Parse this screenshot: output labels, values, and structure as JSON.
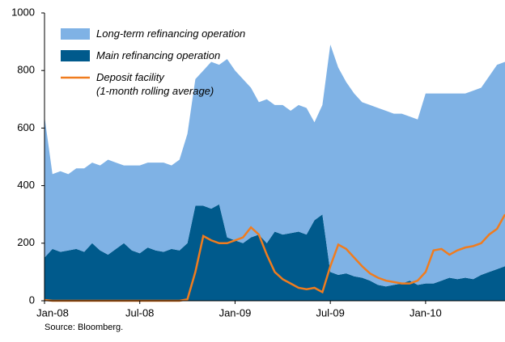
{
  "chart_data": {
    "type": "stacked_area_line",
    "source": "Source: Bloomberg.",
    "categories": [
      "Jan-08",
      null,
      null,
      null,
      null,
      null,
      null,
      null,
      null,
      null,
      null,
      null,
      "Jul-08",
      null,
      null,
      null,
      null,
      null,
      null,
      null,
      null,
      null,
      null,
      null,
      "Jan-09",
      null,
      null,
      null,
      null,
      null,
      null,
      null,
      null,
      null,
      null,
      null,
      "Jul-09",
      null,
      null,
      null,
      null,
      null,
      null,
      null,
      null,
      null,
      null,
      null,
      "Jan-10",
      null,
      null,
      null,
      null,
      null,
      null,
      null,
      null,
      null,
      null
    ],
    "series": [
      {
        "name": "Main refinancing operation",
        "color": "#005a8c",
        "kind": "area",
        "values": [
          150,
          180,
          170,
          175,
          180,
          170,
          200,
          175,
          160,
          180,
          200,
          175,
          165,
          185,
          175,
          170,
          180,
          175,
          200,
          330,
          330,
          320,
          335,
          220,
          210,
          200,
          220,
          230,
          200,
          240,
          230,
          235,
          240,
          230,
          280,
          300,
          100,
          90,
          95,
          85,
          80,
          70,
          55,
          50,
          55,
          60,
          70,
          55,
          60,
          60,
          70,
          80,
          75,
          80,
          75,
          90,
          100,
          110,
          120
        ]
      },
      {
        "name": "Long-term refinancing operation",
        "color": "#7fb2e5",
        "kind": "area",
        "values": [
          490,
          260,
          280,
          265,
          280,
          290,
          280,
          295,
          330,
          300,
          270,
          295,
          305,
          295,
          305,
          310,
          290,
          315,
          380,
          440,
          470,
          510,
          485,
          620,
          590,
          570,
          520,
          460,
          500,
          440,
          450,
          425,
          440,
          440,
          340,
          380,
          790,
          720,
          665,
          635,
          610,
          610,
          615,
          610,
          595,
          590,
          570,
          575,
          660,
          660,
          650,
          640,
          645,
          640,
          655,
          650,
          680,
          710,
          710
        ]
      },
      {
        "name": "Deposit facility\n(1-month rolling average)",
        "color": "#f07c1e",
        "kind": "line",
        "values": [
          3,
          0,
          0,
          0,
          0,
          0,
          0,
          0,
          0,
          0,
          0,
          0,
          0,
          0,
          0,
          0,
          0,
          0,
          5,
          100,
          225,
          210,
          200,
          200,
          210,
          220,
          255,
          230,
          160,
          100,
          75,
          60,
          45,
          40,
          45,
          30,
          120,
          195,
          180,
          150,
          120,
          95,
          80,
          70,
          65,
          60,
          60,
          70,
          100,
          175,
          180,
          160,
          175,
          185,
          190,
          200,
          230,
          250,
          300
        ]
      }
    ],
    "ylim": [
      0,
      1000
    ],
    "yticks": [
      0,
      200,
      400,
      600,
      800,
      1000
    ],
    "grid": false
  }
}
